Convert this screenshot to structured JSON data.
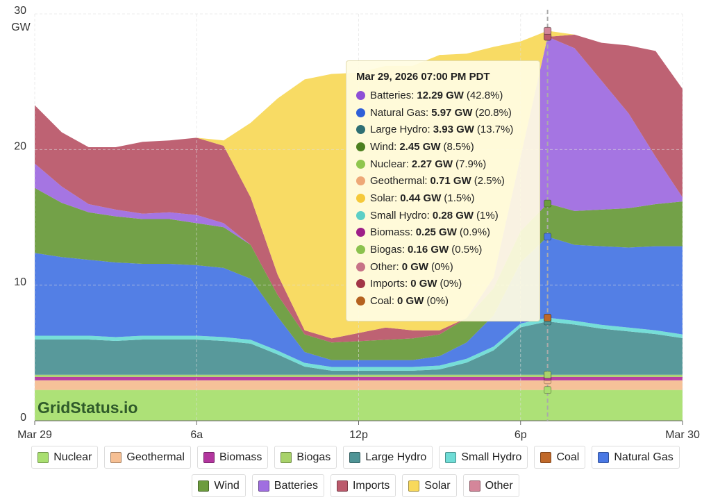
{
  "chart_data": {
    "type": "stacked_area",
    "y_label": "GW",
    "watermark": "GridStatus.io",
    "x": [
      0,
      1,
      2,
      3,
      4,
      5,
      6,
      7,
      8,
      9,
      10,
      11,
      12,
      13,
      14,
      15,
      16,
      17,
      18,
      19,
      20,
      21,
      22,
      23,
      24
    ],
    "xlim": [
      0,
      24
    ],
    "xticks": [
      {
        "value": 0,
        "label": "Mar 29"
      },
      {
        "value": 6,
        "label": "6a"
      },
      {
        "value": 12,
        "label": "12p"
      },
      {
        "value": 18,
        "label": "6p"
      },
      {
        "value": 24,
        "label": "Mar 30"
      }
    ],
    "ylim": [
      0,
      30
    ],
    "yticks": [
      0,
      10,
      20,
      30
    ],
    "grid": true,
    "hover_x": 19,
    "series": [
      {
        "name": "Nuclear",
        "color": "#a9df70",
        "values": [
          2.27,
          2.27,
          2.27,
          2.27,
          2.27,
          2.27,
          2.27,
          2.27,
          2.27,
          2.27,
          2.27,
          2.27,
          2.27,
          2.27,
          2.27,
          2.27,
          2.27,
          2.27,
          2.27,
          2.27,
          2.27,
          2.27,
          2.27,
          2.27,
          2.27
        ]
      },
      {
        "name": "Geothermal",
        "color": "#f6bf93",
        "values": [
          0.71,
          0.71,
          0.71,
          0.71,
          0.71,
          0.71,
          0.71,
          0.71,
          0.71,
          0.71,
          0.71,
          0.71,
          0.71,
          0.71,
          0.71,
          0.71,
          0.71,
          0.71,
          0.71,
          0.71,
          0.71,
          0.71,
          0.71,
          0.71,
          0.71
        ]
      },
      {
        "name": "Biomass",
        "color": "#b2369e",
        "values": [
          0.25,
          0.25,
          0.25,
          0.25,
          0.25,
          0.25,
          0.25,
          0.25,
          0.25,
          0.25,
          0.25,
          0.25,
          0.25,
          0.25,
          0.25,
          0.25,
          0.25,
          0.25,
          0.25,
          0.25,
          0.25,
          0.25,
          0.25,
          0.25,
          0.25
        ]
      },
      {
        "name": "Biogas",
        "color": "#a8d26a",
        "values": [
          0.16,
          0.16,
          0.16,
          0.16,
          0.16,
          0.16,
          0.16,
          0.16,
          0.16,
          0.16,
          0.16,
          0.16,
          0.16,
          0.16,
          0.16,
          0.16,
          0.16,
          0.16,
          0.16,
          0.16,
          0.16,
          0.16,
          0.16,
          0.16,
          0.16
        ]
      },
      {
        "name": "Large Hydro",
        "color": "#4f9496",
        "values": [
          2.6,
          2.6,
          2.6,
          2.5,
          2.6,
          2.6,
          2.6,
          2.5,
          2.3,
          1.5,
          0.6,
          0.3,
          0.3,
          0.3,
          0.3,
          0.4,
          0.9,
          1.8,
          3.5,
          3.93,
          3.7,
          3.4,
          3.2,
          3.0,
          2.7
        ]
      },
      {
        "name": "Small Hydro",
        "color": "#6fdcd6",
        "values": [
          0.28,
          0.28,
          0.28,
          0.28,
          0.28,
          0.28,
          0.28,
          0.28,
          0.28,
          0.28,
          0.28,
          0.28,
          0.28,
          0.28,
          0.28,
          0.28,
          0.28,
          0.28,
          0.28,
          0.28,
          0.28,
          0.28,
          0.28,
          0.28,
          0.28
        ]
      },
      {
        "name": "Coal",
        "color": "#c0692a",
        "values": [
          0,
          0,
          0,
          0,
          0,
          0,
          0,
          0,
          0,
          0,
          0,
          0,
          0,
          0,
          0,
          0,
          0,
          0,
          0,
          0,
          0,
          0,
          0,
          0,
          0
        ]
      },
      {
        "name": "Natural Gas",
        "color": "#4a78e4",
        "values": [
          6.1,
          5.8,
          5.6,
          5.5,
          5.3,
          5.3,
          5.2,
          5.1,
          4.5,
          2.5,
          0.8,
          0.5,
          0.5,
          0.5,
          0.5,
          0.7,
          1.2,
          2.3,
          4.5,
          5.97,
          5.6,
          5.8,
          5.9,
          6.2,
          6.5
        ]
      },
      {
        "name": "Wind",
        "color": "#6c9c3e",
        "values": [
          4.8,
          4.0,
          3.5,
          3.4,
          3.3,
          3.3,
          3.1,
          3.0,
          2.5,
          1.6,
          1.3,
          1.3,
          1.4,
          1.5,
          1.6,
          1.6,
          1.8,
          2.0,
          2.3,
          2.45,
          2.5,
          2.7,
          2.9,
          3.1,
          3.3
        ]
      },
      {
        "name": "Batteries",
        "color": "#a06ee0",
        "values": [
          1.8,
          1.2,
          0.6,
          0.5,
          0.4,
          0.5,
          0.6,
          0.3,
          0,
          0,
          0,
          0,
          0,
          0,
          0,
          0,
          0,
          0.8,
          5.5,
          12.29,
          12.0,
          9.5,
          7.0,
          3.5,
          0.3
        ]
      },
      {
        "name": "Imports",
        "color": "#bb5a6c",
        "values": [
          4.3,
          4.0,
          4.2,
          4.6,
          5.3,
          5.3,
          5.7,
          5.7,
          3.5,
          1.5,
          0.3,
          0.3,
          0.6,
          0.9,
          0.6,
          0.3,
          0,
          0,
          0,
          0,
          1.0,
          2.8,
          5.0,
          7.8,
          8.0
        ]
      },
      {
        "name": "Solar",
        "color": "#f8d95c",
        "values": [
          0,
          0,
          0,
          0,
          0,
          0,
          0,
          0.4,
          5.5,
          13,
          18.5,
          19.5,
          19.2,
          19.3,
          19.5,
          20.3,
          19.5,
          17,
          8.5,
          0.44,
          0,
          0,
          0,
          0,
          0
        ]
      },
      {
        "name": "Other",
        "color": "#d4869a",
        "values": [
          0,
          0,
          0,
          0,
          0,
          0,
          0,
          0,
          0,
          0,
          0,
          0,
          0,
          0,
          0,
          0,
          0,
          0,
          0,
          0,
          0,
          0,
          0,
          0,
          0
        ]
      }
    ]
  },
  "tooltip": {
    "title": "Mar 29, 2026 07:00 PM PDT",
    "rows": [
      {
        "label": "Batteries:",
        "value": "12.29 GW",
        "share": "(42.8%)",
        "color": "#8e4fd6"
      },
      {
        "label": "Natural Gas:",
        "value": "5.97 GW",
        "share": "(20.8%)",
        "color": "#2f5fd8"
      },
      {
        "label": "Large Hydro:",
        "value": "3.93 GW",
        "share": "(13.7%)",
        "color": "#2f6f73"
      },
      {
        "label": "Wind:",
        "value": "2.45 GW",
        "share": "(8.5%)",
        "color": "#4c7f20"
      },
      {
        "label": "Nuclear:",
        "value": "2.27 GW",
        "share": "(7.9%)",
        "color": "#8fc64e"
      },
      {
        "label": "Geothermal:",
        "value": "0.71 GW",
        "share": "(2.5%)",
        "color": "#eea877"
      },
      {
        "label": "Solar:",
        "value": "0.44 GW",
        "share": "(1.5%)",
        "color": "#f5c93a"
      },
      {
        "label": "Small Hydro:",
        "value": "0.28 GW",
        "share": "(1%)",
        "color": "#5ccfc6"
      },
      {
        "label": "Biomass:",
        "value": "0.25 GW",
        "share": "(0.9%)",
        "color": "#9e1f88"
      },
      {
        "label": "Biogas:",
        "value": "0.16 GW",
        "share": "(0.5%)",
        "color": "#8cc24e"
      },
      {
        "label": "Other:",
        "value": "0 GW",
        "share": "(0%)",
        "color": "#c77387"
      },
      {
        "label": "Imports:",
        "value": "0 GW",
        "share": "(0%)",
        "color": "#a23647"
      },
      {
        "label": "Coal:",
        "value": "0 GW",
        "share": "(0%)",
        "color": "#b5621f"
      }
    ]
  }
}
